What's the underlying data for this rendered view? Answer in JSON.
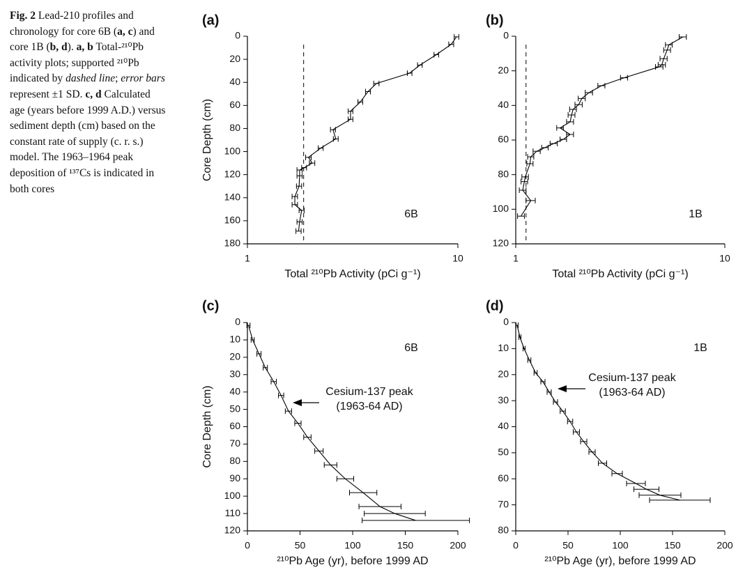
{
  "caption": [
    {
      "text": "Fig. 2",
      "style": "bold"
    },
    {
      "text": " Lead-210 profiles and chronology for core 6B ("
    },
    {
      "text": "a, c",
      "style": "bold"
    },
    {
      "text": ") and core 1B ("
    },
    {
      "text": "b, d",
      "style": "bold"
    },
    {
      "text": "). "
    },
    {
      "text": "a, b",
      "style": "bold"
    },
    {
      "text": " Total-²¹⁰Pb activity plots; supported ²¹⁰Pb indicated by "
    },
    {
      "text": "dashed line",
      "style": "italic"
    },
    {
      "text": "; "
    },
    {
      "text": "error bars",
      "style": "italic"
    },
    {
      "text": " represent ±1 SD. "
    },
    {
      "text": "c, d",
      "style": "bold"
    },
    {
      "text": " Calculated age (years before 1999 A.D.) versus sediment depth (cm) based on the constant rate of supply (c. r. s.) model. The 1963–1964 peak deposition of ¹³⁷Cs is indicated in both cores"
    }
  ],
  "chart_data": [
    {
      "type": "line",
      "title": "(a)",
      "label": "6B",
      "xlabel": "Total ²¹⁰Pb Activity (pCi g⁻¹)",
      "ylabel": "Core Depth (cm)",
      "x": [
        9.85,
        9.3,
        7.9,
        6.6,
        5.9,
        4.1,
        3.74,
        3.44,
        3.09,
        3.09,
        2.55,
        2.63,
        2.23,
        1.95,
        2.03,
        1.86,
        1.77,
        1.77,
        1.76,
        1.68,
        1.68,
        1.81,
        1.77,
        1.75
      ],
      "values": [
        0.5,
        7,
        16,
        25,
        32,
        41,
        48,
        57,
        65,
        72,
        81,
        89,
        97,
        105,
        110,
        114,
        116,
        121,
        130,
        139,
        146,
        151,
        161,
        169
      ],
      "xerr": [
        0.25,
        0.25,
        0.2,
        0.17,
        0.15,
        0.12,
        0.1,
        0.09,
        0.08,
        0.08,
        0.07,
        0.07,
        0.06,
        0.06,
        0.06,
        0.05,
        0.05,
        0.05,
        0.05,
        0.05,
        0.05,
        0.05,
        0.05,
        0.05
      ],
      "supported": 1.85,
      "xscale": "log",
      "xlim": [
        1,
        10
      ],
      "xticks": [
        1,
        10
      ],
      "ylim": [
        0,
        180
      ],
      "yticks": [
        0,
        20,
        40,
        60,
        80,
        100,
        120,
        140,
        160,
        180
      ],
      "yinverted": true,
      "color": "#000000"
    },
    {
      "type": "line",
      "title": "(b)",
      "label": "1B",
      "xlabel": "Total ²¹⁰Pb Activity (pCi g⁻¹)",
      "x": [
        6.3,
        5.4,
        5.3,
        5.1,
        5.0,
        4.86,
        3.3,
        2.57,
        2.24,
        2.07,
        2.0,
        1.88,
        1.85,
        1.82,
        1.63,
        1.82,
        1.69,
        1.52,
        1.38,
        1.26,
        1.18,
        1.17,
        1.11,
        1.1,
        1.08,
        1.18,
        1.06
      ],
      "values": [
        0.4,
        5,
        8,
        13,
        16.5,
        17.7,
        24,
        28.6,
        32.6,
        36,
        39.5,
        42.3,
        45.5,
        49.5,
        53,
        56.8,
        59.6,
        62,
        64.4,
        66.5,
        69.7,
        73.7,
        81.3,
        84,
        89,
        95,
        104
      ],
      "xerr": [
        0.25,
        0.2,
        0.2,
        0.2,
        0.2,
        0.2,
        0.13,
        0.1,
        0.09,
        0.08,
        0.08,
        0.07,
        0.07,
        0.07,
        0.06,
        0.07,
        0.06,
        0.06,
        0.05,
        0.05,
        0.04,
        0.04,
        0.04,
        0.04,
        0.04,
        0.06,
        0.04
      ],
      "supported": 1.12,
      "xscale": "log",
      "xlim": [
        1,
        10
      ],
      "xticks": [
        1,
        10
      ],
      "ylim": [
        0,
        120
      ],
      "yticks": [
        0,
        20,
        40,
        60,
        80,
        100,
        120
      ],
      "yinverted": true,
      "color": "#000000"
    },
    {
      "type": "line",
      "title": "(c)",
      "label": "6B",
      "xlabel": "²¹⁰Pb Age (yr), before 1999 AD",
      "ylabel": "Core Depth (cm)",
      "annotation": [
        "Cesium-137 peak",
        "(1963-64 AD)"
      ],
      "x": [
        1,
        5,
        11,
        17,
        25,
        32,
        39,
        48,
        57,
        68,
        79,
        93,
        110,
        126,
        140,
        160
      ],
      "values": [
        1.6,
        10,
        18,
        26,
        34,
        42,
        51,
        58,
        66,
        74,
        82,
        90,
        98,
        106,
        110,
        114
      ],
      "xerr": [
        1.5,
        1.5,
        2,
        2,
        2.5,
        2.5,
        3,
        3,
        3.5,
        4,
        6,
        8,
        13,
        20,
        29,
        51
      ],
      "xlim": [
        0,
        200
      ],
      "xticks": [
        0,
        50,
        100,
        150,
        200
      ],
      "ylim": [
        0,
        120
      ],
      "yticks": [
        0,
        10,
        20,
        30,
        40,
        50,
        60,
        70,
        80,
        90,
        100,
        110,
        120
      ],
      "yinverted": true,
      "color": "#000000"
    },
    {
      "type": "line",
      "title": "(d)",
      "label": "1B",
      "xlabel": "²¹⁰Pb Age (yr), before 1999 AD",
      "annotation": [
        "Cesium-137 peak",
        "(1963-64 AD)"
      ],
      "x": [
        1.3,
        4,
        8,
        13,
        19,
        26,
        32,
        38,
        45,
        52,
        58,
        65,
        73,
        83,
        97,
        115,
        125,
        138,
        157
      ],
      "values": [
        1,
        5.6,
        10,
        14.4,
        19.3,
        22.7,
        26.7,
        30.5,
        34,
        38,
        42,
        45.7,
        49.7,
        54,
        58,
        61.8,
        64,
        66.3,
        68.2
      ],
      "xerr": [
        1,
        1,
        1,
        1.5,
        1.5,
        2,
        2,
        2,
        2.5,
        2.5,
        3,
        3,
        3,
        4,
        5,
        9,
        12,
        20,
        29
      ],
      "xlim": [
        0,
        200
      ],
      "xticks": [
        0,
        50,
        100,
        150,
        200
      ],
      "ylim": [
        0,
        80
      ],
      "yticks": [
        0,
        10,
        20,
        30,
        40,
        50,
        60,
        70,
        80
      ],
      "yinverted": true,
      "color": "#000000"
    }
  ]
}
